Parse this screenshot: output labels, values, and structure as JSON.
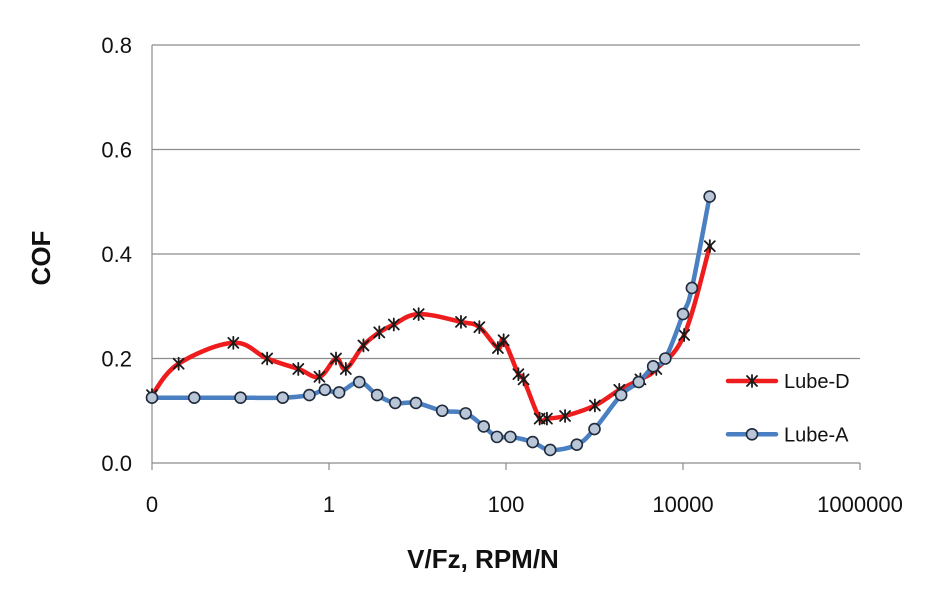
{
  "chart_data": {
    "type": "line",
    "xlabel": "V/Fz, RPM/N",
    "ylabel": "COF",
    "x_scale": "log",
    "xlim": [
      0.01,
      1000000
    ],
    "ylim": [
      0,
      0.8
    ],
    "x_tick_labels": [
      "0",
      "1",
      "100",
      "10000",
      "1000000"
    ],
    "x_tick_values": [
      0.01,
      1,
      100,
      10000,
      1000000
    ],
    "y_tick_labels": [
      "0.0",
      "0.2",
      "0.4",
      "0.6",
      "0.8"
    ],
    "y_tick_values": [
      0,
      0.2,
      0.4,
      0.6,
      0.8
    ],
    "grid": "horizontal",
    "legend_position": "right",
    "series": [
      {
        "name": "Lube-D",
        "color": "#ee1c1c",
        "marker": "asterisk",
        "x": [
          0.01,
          0.02,
          0.083,
          0.2,
          0.45,
          0.78,
          1.2,
          1.55,
          2.45,
          3.7,
          5.4,
          10.3,
          31,
          50,
          81,
          94,
          138,
          158,
          240,
          290,
          465,
          1010,
          1905,
          3300,
          5000,
          10300,
          20100
        ],
        "y": [
          0.13,
          0.19,
          0.23,
          0.2,
          0.18,
          0.165,
          0.2,
          0.18,
          0.225,
          0.25,
          0.265,
          0.285,
          0.27,
          0.26,
          0.22,
          0.235,
          0.17,
          0.16,
          0.085,
          0.085,
          0.09,
          0.11,
          0.14,
          0.16,
          0.18,
          0.245,
          0.415
        ]
      },
      {
        "name": "Lube-A",
        "color": "#4a7fc1",
        "marker": "circle",
        "x": [
          0.01,
          0.03,
          0.1,
          0.3,
          0.6,
          0.9,
          1.3,
          2.2,
          3.5,
          5.6,
          9.6,
          19,
          35,
          56,
          79,
          112,
          200,
          316,
          631,
          1000,
          2000,
          3160,
          4600,
          6310,
          10000,
          12600,
          20000
        ],
        "y": [
          0.125,
          0.125,
          0.125,
          0.125,
          0.13,
          0.14,
          0.135,
          0.155,
          0.13,
          0.115,
          0.115,
          0.1,
          0.095,
          0.07,
          0.05,
          0.05,
          0.04,
          0.025,
          0.035,
          0.065,
          0.13,
          0.155,
          0.185,
          0.2,
          0.285,
          0.335,
          0.51
        ]
      }
    ]
  }
}
